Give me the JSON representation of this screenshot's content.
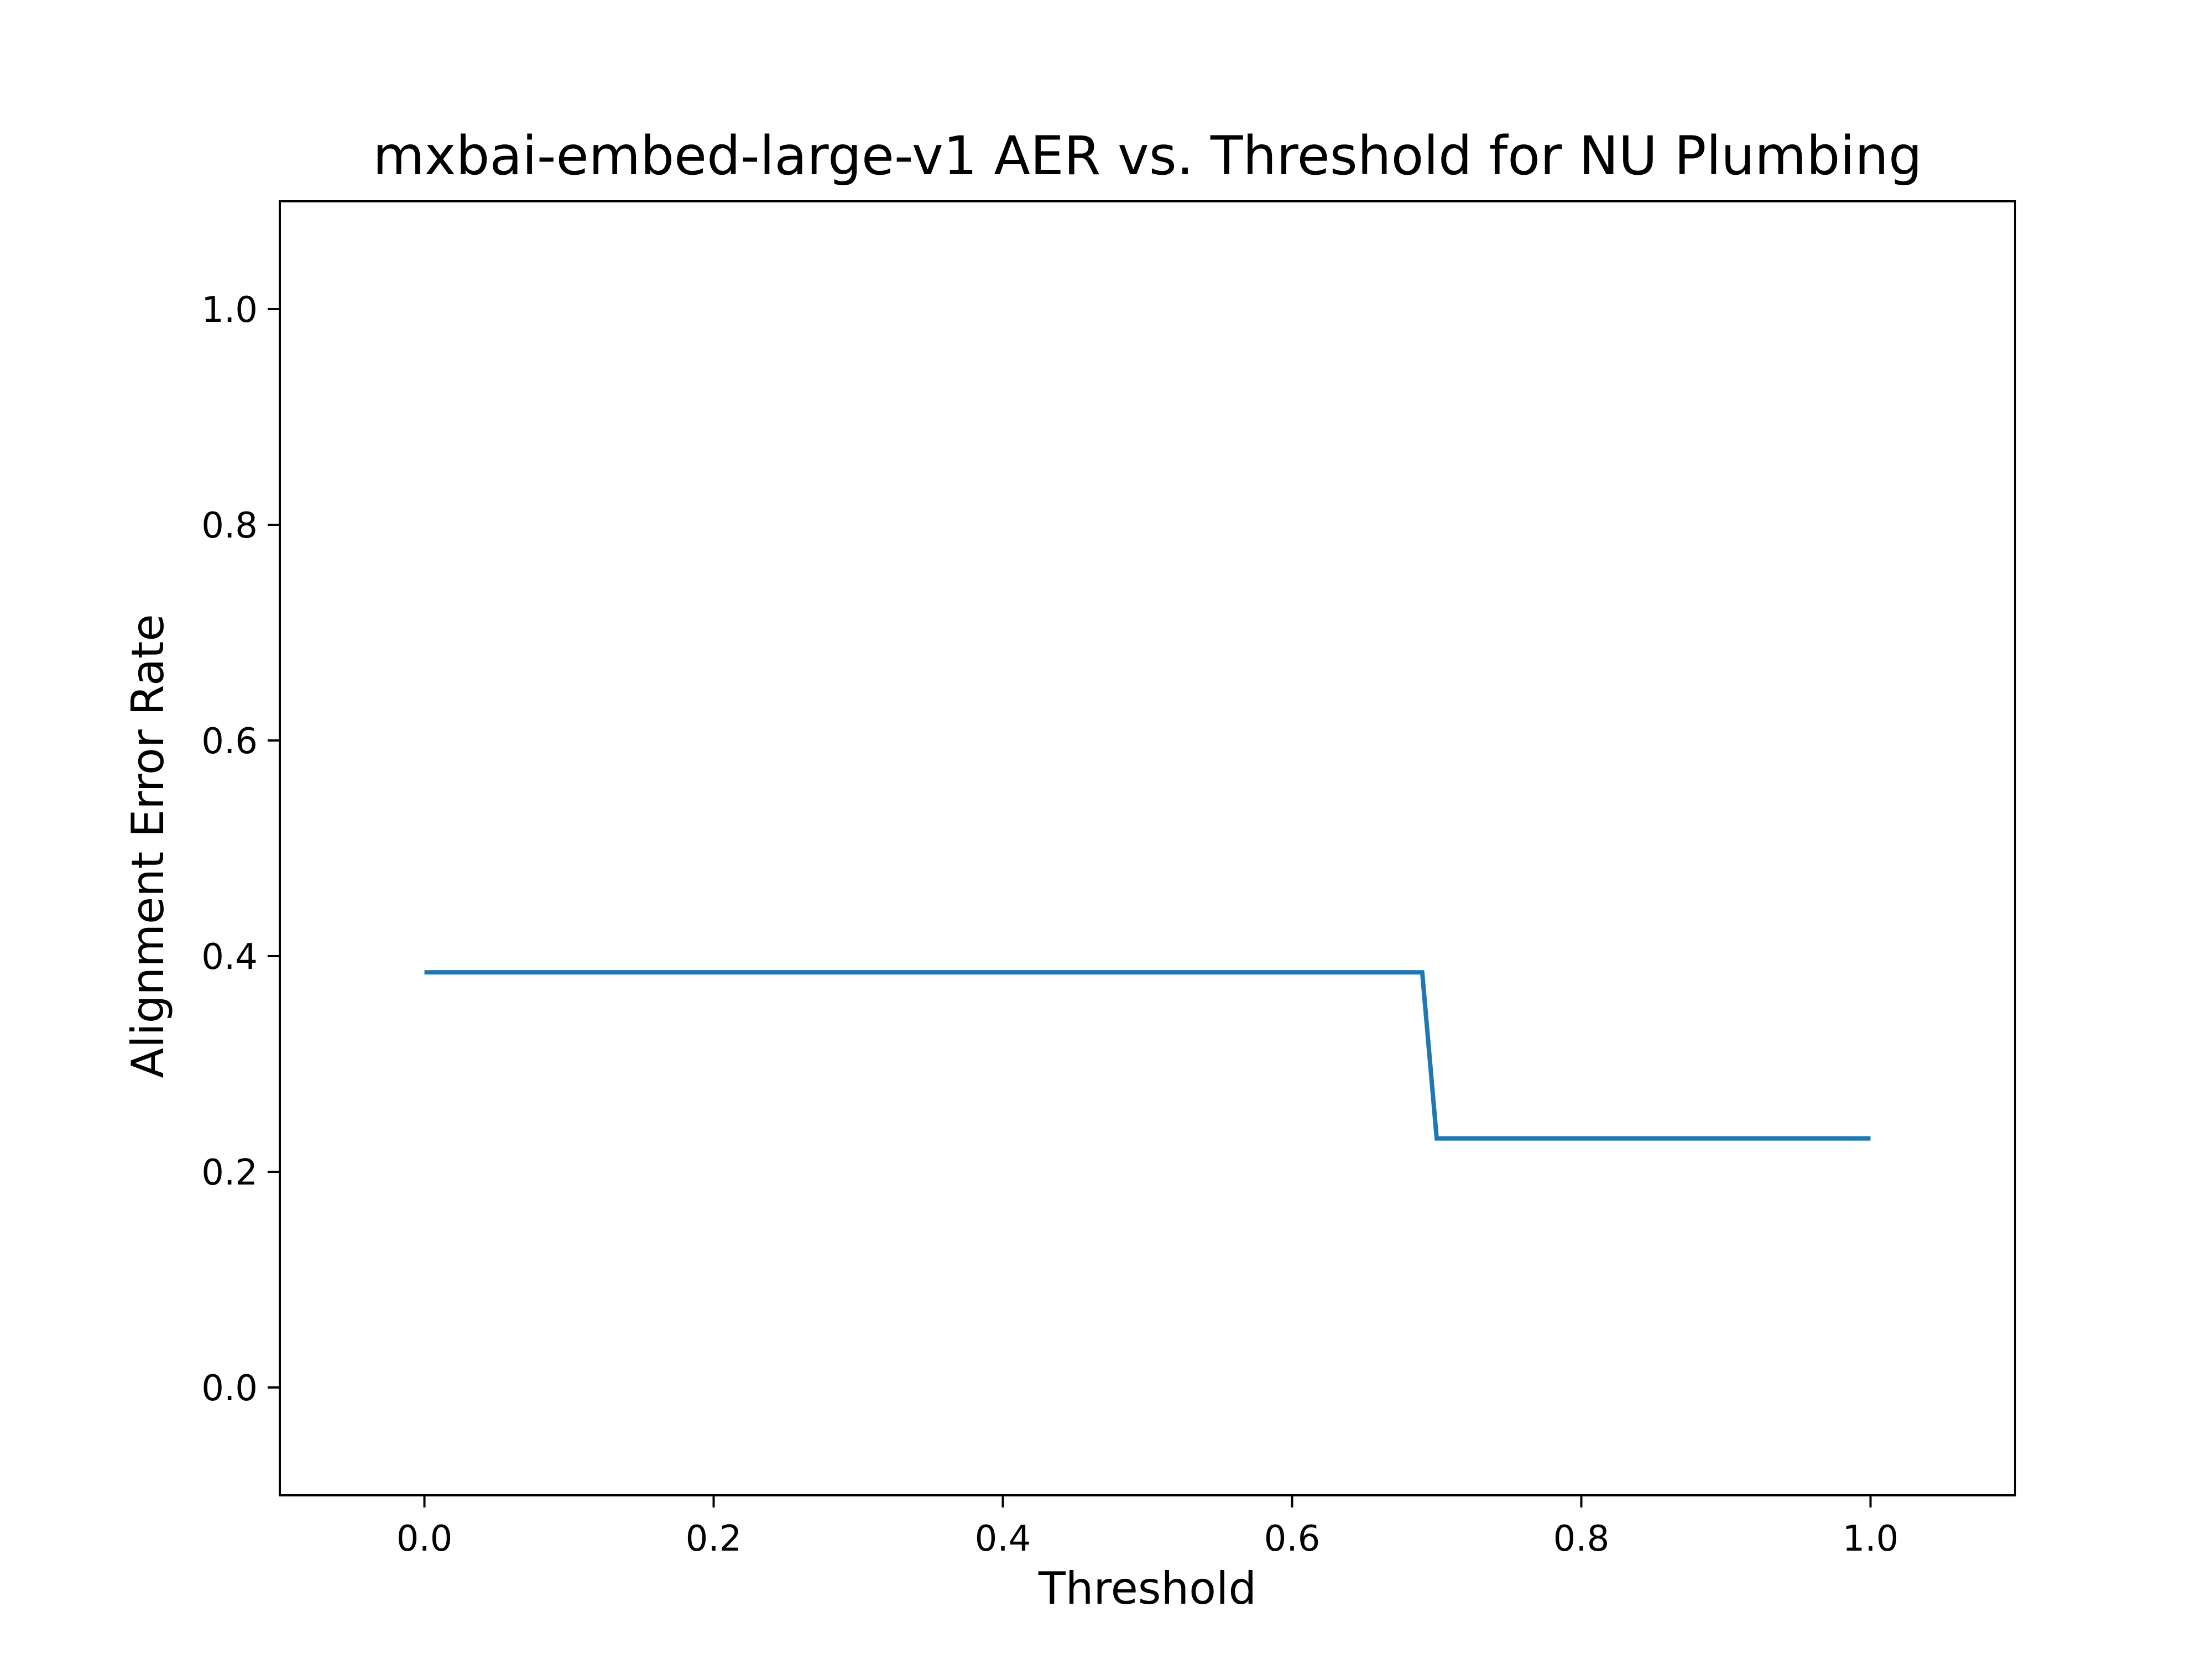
{
  "chart_data": {
    "type": "line",
    "title": "mxbai-embed-large-v1 AER vs. Threshold for NU Plumbing",
    "xlabel": "Threshold",
    "ylabel": "Alignment Error Rate",
    "xlim": [
      -0.1,
      1.1
    ],
    "ylim": [
      -0.1,
      1.1
    ],
    "xticks": [
      0.0,
      0.2,
      0.4,
      0.6,
      0.8,
      1.0
    ],
    "xtick_labels": [
      "0.0",
      "0.2",
      "0.4",
      "0.6",
      "0.8",
      "1.0"
    ],
    "yticks": [
      0.0,
      0.2,
      0.4,
      0.6,
      0.8,
      1.0
    ],
    "ytick_labels": [
      "0.0",
      "0.2",
      "0.4",
      "0.6",
      "0.8",
      "1.0"
    ],
    "grid": false,
    "series": [
      {
        "color": "#1f77b4",
        "x": [
          0.0,
          0.69,
          0.7,
          1.0
        ],
        "y": [
          0.385,
          0.385,
          0.231,
          0.231
        ]
      }
    ]
  }
}
